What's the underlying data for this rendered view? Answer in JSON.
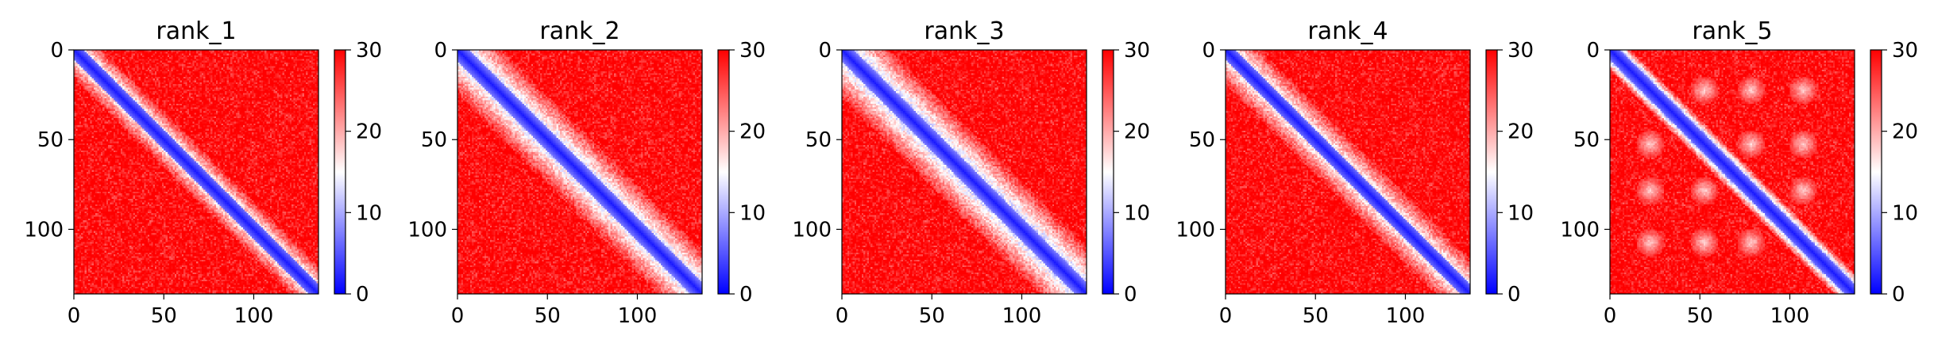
{
  "chart_data": [
    {
      "type": "heatmap",
      "title": "rank_1",
      "xticks": [
        "0",
        "50",
        "100"
      ],
      "yticks": [
        "0",
        "50",
        "100"
      ],
      "xlim": [
        0,
        136
      ],
      "ylim": [
        0,
        136
      ],
      "colorbar": {
        "ticks": [
          "0",
          "10",
          "20",
          "30"
        ],
        "range": [
          0,
          30
        ],
        "colormap": [
          "#0000ff",
          "#ffffff",
          "#ff0000"
        ]
      },
      "pattern": {
        "diagonal_width": 6,
        "band_width": 10,
        "band_value": 17,
        "blobs": []
      }
    },
    {
      "type": "heatmap",
      "title": "rank_2",
      "xticks": [
        "0",
        "50",
        "100"
      ],
      "yticks": [
        "0",
        "50",
        "100"
      ],
      "xlim": [
        0,
        136
      ],
      "ylim": [
        0,
        136
      ],
      "colorbar": {
        "ticks": [
          "0",
          "10",
          "20",
          "30"
        ],
        "range": [
          0,
          30
        ],
        "colormap": [
          "#0000ff",
          "#ffffff",
          "#ff0000"
        ]
      },
      "pattern": {
        "diagonal_width": 7,
        "band_width": 18,
        "band_value": 14,
        "blobs": []
      }
    },
    {
      "type": "heatmap",
      "title": "rank_3",
      "xticks": [
        "0",
        "50",
        "100"
      ],
      "yticks": [
        "0",
        "50",
        "100"
      ],
      "xlim": [
        0,
        136
      ],
      "ylim": [
        0,
        136
      ],
      "colorbar": {
        "ticks": [
          "0",
          "10",
          "20",
          "30"
        ],
        "range": [
          0,
          30
        ],
        "colormap": [
          "#0000ff",
          "#ffffff",
          "#ff0000"
        ]
      },
      "pattern": {
        "diagonal_width": 7,
        "band_width": 20,
        "band_value": 13,
        "blobs": []
      }
    },
    {
      "type": "heatmap",
      "title": "rank_4",
      "xticks": [
        "0",
        "50",
        "100"
      ],
      "yticks": [
        "0",
        "50",
        "100"
      ],
      "xlim": [
        0,
        136
      ],
      "ylim": [
        0,
        136
      ],
      "colorbar": {
        "ticks": [
          "0",
          "10",
          "20",
          "30"
        ],
        "range": [
          0,
          30
        ],
        "colormap": [
          "#0000ff",
          "#ffffff",
          "#ff0000"
        ]
      },
      "pattern": {
        "diagonal_width": 6,
        "band_width": 14,
        "band_value": 16,
        "blobs": []
      }
    },
    {
      "type": "heatmap",
      "title": "rank_5",
      "xticks": [
        "0",
        "50",
        "100"
      ],
      "yticks": [
        "0",
        "50",
        "100"
      ],
      "xlim": [
        0,
        136
      ],
      "ylim": [
        0,
        136
      ],
      "colorbar": {
        "ticks": [
          "0",
          "10",
          "20",
          "30"
        ],
        "range": [
          0,
          30
        ],
        "colormap": [
          "#0000ff",
          "#ffffff",
          "#ff0000"
        ]
      },
      "pattern": {
        "diagonal_width": 6,
        "band_width": 6,
        "band_value": 12,
        "blobs": [
          [
            52,
            22
          ],
          [
            78,
            22
          ],
          [
            107,
            22
          ],
          [
            22,
            52
          ],
          [
            78,
            52
          ],
          [
            107,
            52
          ],
          [
            22,
            78
          ],
          [
            52,
            78
          ],
          [
            107,
            78
          ],
          [
            22,
            107
          ],
          [
            52,
            107
          ],
          [
            78,
            107
          ]
        ]
      }
    }
  ]
}
